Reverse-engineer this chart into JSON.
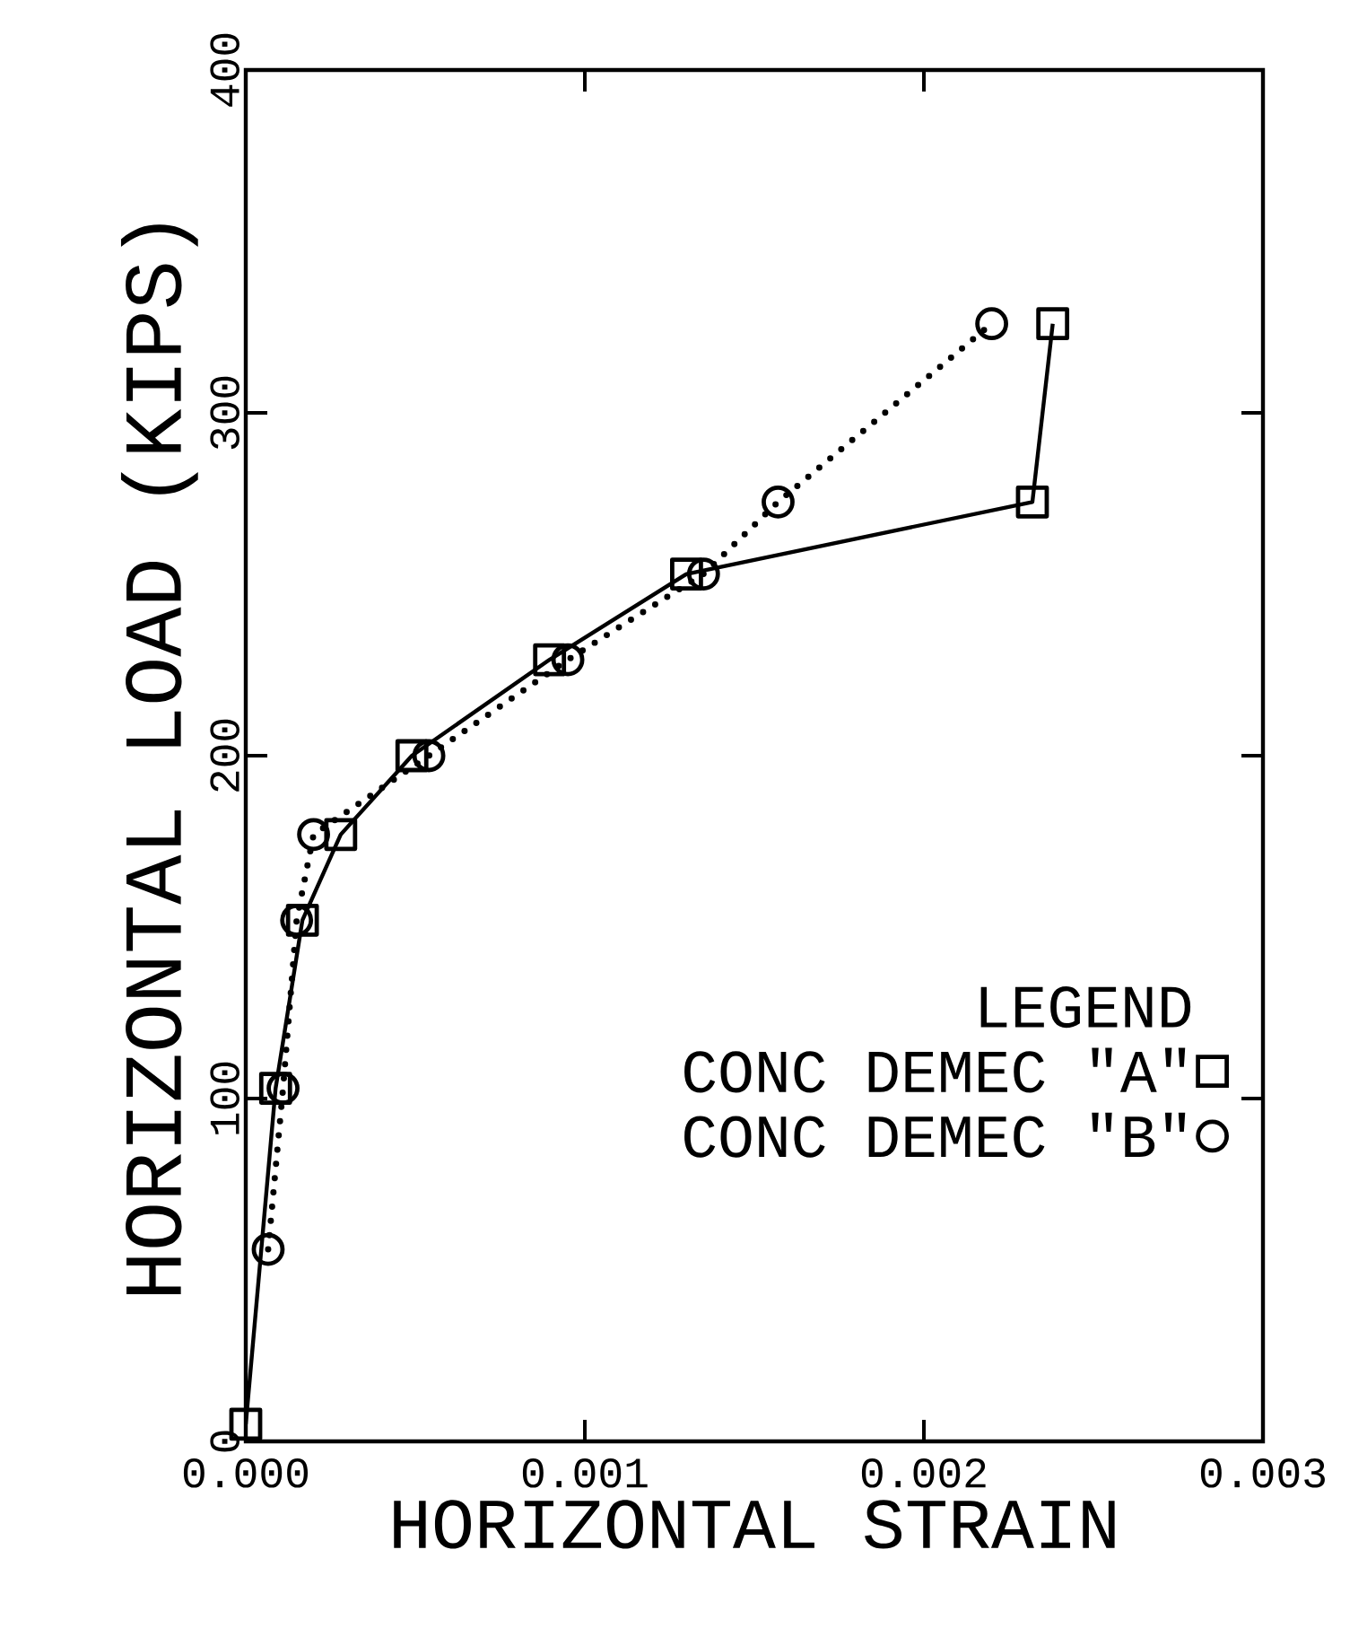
{
  "chart_data": {
    "type": "line",
    "xlabel": "HORIZONTAL STRAIN",
    "ylabel": "HORIZONTAL LOAD (KIPS)",
    "legend_title": "LEGEND",
    "legend": "bottom right",
    "xlim": [
      0,
      0.003
    ],
    "xticks": [
      {
        "value": 0,
        "label": "0.000"
      },
      {
        "value": 0.001,
        "label": "0.001"
      },
      {
        "value": 0.002,
        "label": "0.002"
      },
      {
        "value": 0.003,
        "label": "0.003"
      }
    ],
    "ylim": [
      0,
      400
    ],
    "yticks": [
      0,
      100,
      200,
      300,
      400
    ],
    "grid": false,
    "series": [
      {
        "name": "CONC DEMEC \"A\"",
        "color": "#000000",
        "marker": "square",
        "line_style": "solid",
        "x": [
          0,
          8.8e-05,
          0.000167,
          0.00028,
          0.00049,
          0.000896,
          0.0013,
          0.00232,
          0.00238
        ],
        "values": [
          5,
          103,
          152,
          177,
          200,
          228,
          253,
          274,
          326
        ]
      },
      {
        "name": "CONC DEMEC \"B\"",
        "color": "#000000",
        "marker": "circle",
        "line_style": "dotted",
        "x": [
          6.6e-05,
          0.00011,
          0.00015,
          0.0002,
          0.00054,
          0.00095,
          0.00135,
          0.00157,
          0.0022
        ],
        "values": [
          56,
          103,
          152,
          177,
          200,
          228,
          253,
          274,
          326
        ]
      }
    ]
  }
}
